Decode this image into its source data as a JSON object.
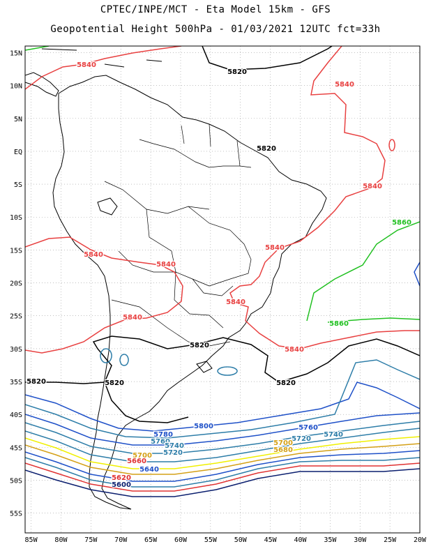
{
  "title_line1": "CPTEC/INPE/MCT -  Eta Model 15km - GFS",
  "title_line2": "Geopotential Height 500hPa - 01/03/2021 12UTC fct=33h",
  "map": {
    "lon_range": [
      -86,
      -20
    ],
    "lat_range": [
      -58,
      16
    ],
    "lat_ticks": [
      "15N",
      "10N",
      "5N",
      "EQ",
      "5S",
      "10S",
      "15S",
      "20S",
      "25S",
      "30S",
      "35S",
      "40S",
      "45S",
      "50S",
      "55S"
    ],
    "lon_ticks": [
      "85W",
      "80W",
      "75W",
      "70W",
      "65W",
      "60W",
      "55W",
      "50W",
      "45W",
      "40W",
      "35W",
      "30W",
      "25W",
      "20W"
    ],
    "grid": true
  },
  "colors": {
    "c5460": "#0a1e6e",
    "c5580": "#1e50c8",
    "c5600": "#2d7da8",
    "c5620": "#e03232",
    "c5640": "#1e50c8",
    "c5660": "#2d7da8",
    "c5680": "#d4a017",
    "c5700": "#f0f000",
    "c5720": "#2d7da8",
    "c5740": "#2d7da8",
    "c5760": "#1e50c8",
    "c5800": "#1e50c8",
    "c5820": "#000000",
    "c5840": "#e84040",
    "c5860": "#20c020"
  },
  "contour_labels": [
    {
      "text": "5840",
      "color": "#e84040"
    },
    {
      "text": "5840",
      "color": "#e84040"
    },
    {
      "text": "5840",
      "color": "#e84040"
    },
    {
      "text": "5840",
      "color": "#e84040"
    },
    {
      "text": "5840",
      "color": "#e84040"
    },
    {
      "text": "5840",
      "color": "#e84040"
    },
    {
      "text": "5840",
      "color": "#e84040"
    },
    {
      "text": "5840",
      "color": "#e84040"
    },
    {
      "text": "5840",
      "color": "#e84040"
    },
    {
      "text": "5820",
      "color": "#000000"
    },
    {
      "text": "5820",
      "color": "#000000"
    },
    {
      "text": "5820",
      "color": "#000000"
    },
    {
      "text": "5820",
      "color": "#000000"
    },
    {
      "text": "5820",
      "color": "#000000"
    },
    {
      "text": "5820",
      "color": "#000000"
    },
    {
      "text": "5860",
      "color": "#20c020"
    },
    {
      "text": "5860",
      "color": "#20c020"
    },
    {
      "text": "5800",
      "color": "#1e50c8"
    },
    {
      "text": "5780",
      "color": "#1e50c8"
    },
    {
      "text": "5760",
      "color": "#1e50c8"
    },
    {
      "text": "5760",
      "color": "#2d7da8"
    },
    {
      "text": "5740",
      "color": "#2d7da8"
    },
    {
      "text": "5740",
      "color": "#2d7da8"
    },
    {
      "text": "5720",
      "color": "#2d7da8"
    },
    {
      "text": "5720",
      "color": "#2d7da8"
    },
    {
      "text": "5700",
      "color": "#d4a017"
    },
    {
      "text": "5700",
      "color": "#d4a017"
    },
    {
      "text": "5680",
      "color": "#d4a017"
    },
    {
      "text": "5660",
      "color": "#e03232"
    },
    {
      "text": "5640",
      "color": "#1e50c8"
    },
    {
      "text": "5620",
      "color": "#e03232"
    },
    {
      "text": "5600",
      "color": "#0a1e6e"
    }
  ]
}
